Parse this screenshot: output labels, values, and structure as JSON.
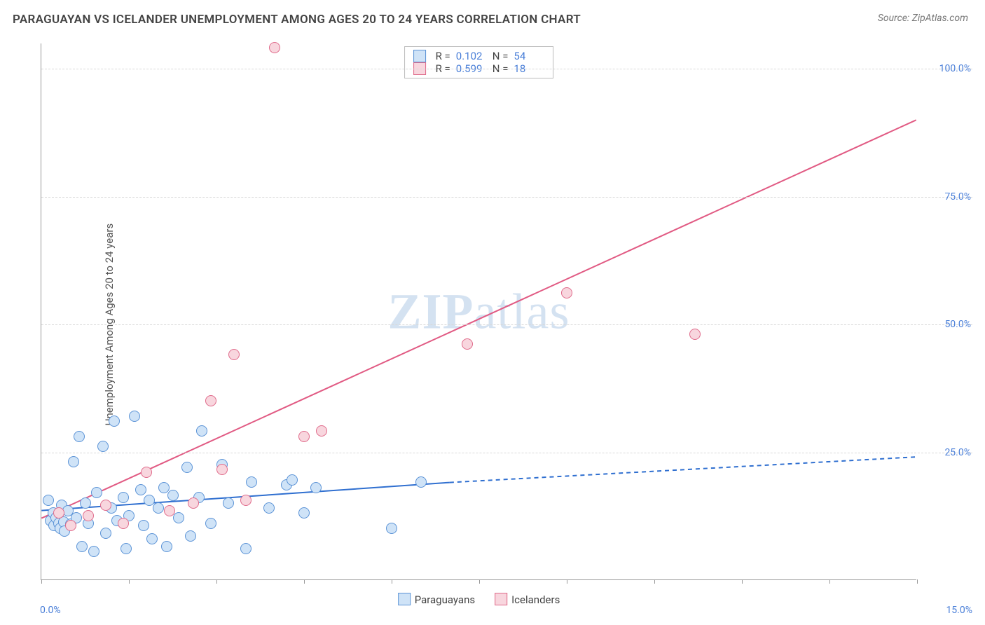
{
  "header": {
    "title": "PARAGUAYAN VS ICELANDER UNEMPLOYMENT AMONG AGES 20 TO 24 YEARS CORRELATION CHART",
    "source": "Source: ZipAtlas.com"
  },
  "axes": {
    "ylabel": "Unemployment Among Ages 20 to 24 years",
    "x_min_label": "0.0%",
    "x_max_label": "15.0%",
    "xlim": [
      0,
      15
    ],
    "ylim": [
      0,
      105
    ],
    "yticks": [
      {
        "v": 25,
        "label": "25.0%"
      },
      {
        "v": 50,
        "label": "50.0%"
      },
      {
        "v": 75,
        "label": "75.0%"
      },
      {
        "v": 100,
        "label": "100.0%"
      }
    ],
    "xtick_positions": [
      0,
      1.5,
      3,
      4.5,
      6,
      7.5,
      9,
      10.5,
      12,
      13.5,
      15
    ],
    "grid_color": "#d8d8d8",
    "axis_color": "#999999"
  },
  "watermark": {
    "bold": "ZIP",
    "rest": "atlas",
    "color": "#b9cfe8"
  },
  "series": {
    "paraguayans": {
      "label": "Paraguayans",
      "fill": "#cfe3f7",
      "stroke": "#5b93d6",
      "marker_radius": 8,
      "line_color": "#2f6fd0",
      "line_width": 2,
      "trend_solid": [
        [
          0,
          13.5
        ],
        [
          7.0,
          19
        ]
      ],
      "trend_dashed": [
        [
          7.0,
          19
        ],
        [
          15,
          24
        ]
      ],
      "points": [
        [
          0.12,
          15.5
        ],
        [
          0.15,
          11.5
        ],
        [
          0.2,
          13
        ],
        [
          0.22,
          10.5
        ],
        [
          0.25,
          12
        ],
        [
          0.3,
          11
        ],
        [
          0.32,
          10
        ],
        [
          0.35,
          14.5
        ],
        [
          0.38,
          11.2
        ],
        [
          0.4,
          9.5
        ],
        [
          0.45,
          13.5
        ],
        [
          0.5,
          10.8
        ],
        [
          0.55,
          23
        ],
        [
          0.6,
          12
        ],
        [
          0.65,
          28
        ],
        [
          0.7,
          6.5
        ],
        [
          0.75,
          15
        ],
        [
          0.8,
          11
        ],
        [
          0.9,
          5.5
        ],
        [
          0.95,
          17
        ],
        [
          1.05,
          26
        ],
        [
          1.1,
          9
        ],
        [
          1.2,
          14
        ],
        [
          1.25,
          31
        ],
        [
          1.3,
          11.5
        ],
        [
          1.4,
          16
        ],
        [
          1.45,
          6
        ],
        [
          1.5,
          12.5
        ],
        [
          1.6,
          32
        ],
        [
          1.7,
          17.5
        ],
        [
          1.75,
          10.5
        ],
        [
          1.85,
          15.5
        ],
        [
          1.9,
          8
        ],
        [
          2.0,
          14
        ],
        [
          2.1,
          18
        ],
        [
          2.15,
          6.5
        ],
        [
          2.25,
          16.5
        ],
        [
          2.35,
          12
        ],
        [
          2.5,
          22
        ],
        [
          2.55,
          8.5
        ],
        [
          2.7,
          16
        ],
        [
          2.75,
          29
        ],
        [
          2.9,
          11
        ],
        [
          3.1,
          22.5
        ],
        [
          3.2,
          15
        ],
        [
          3.5,
          6
        ],
        [
          3.6,
          19
        ],
        [
          3.9,
          14
        ],
        [
          4.2,
          18.5
        ],
        [
          4.3,
          19.5
        ],
        [
          4.5,
          13
        ],
        [
          4.7,
          18
        ],
        [
          6.0,
          10
        ],
        [
          6.5,
          19
        ]
      ]
    },
    "icelanders": {
      "label": "Icelanders",
      "fill": "#f8d6de",
      "stroke": "#e06b8b",
      "marker_radius": 8,
      "line_color": "#e15a83",
      "line_width": 2,
      "trend_solid": [
        [
          0,
          12
        ],
        [
          15,
          90
        ]
      ],
      "points": [
        [
          0.3,
          13
        ],
        [
          0.5,
          10.5
        ],
        [
          0.8,
          12.5
        ],
        [
          1.1,
          14.5
        ],
        [
          1.4,
          11
        ],
        [
          1.8,
          21
        ],
        [
          2.2,
          13.5
        ],
        [
          2.6,
          15
        ],
        [
          2.9,
          35
        ],
        [
          3.1,
          21.5
        ],
        [
          3.3,
          44
        ],
        [
          3.5,
          15.5
        ],
        [
          4.5,
          28
        ],
        [
          4.8,
          29
        ],
        [
          7.3,
          46
        ],
        [
          9.0,
          56
        ],
        [
          11.2,
          48
        ],
        [
          4.0,
          104
        ]
      ]
    }
  },
  "stats": {
    "rows": [
      {
        "swatch_fill": "#cfe3f7",
        "swatch_stroke": "#5b93d6",
        "r": "0.102",
        "n": "54"
      },
      {
        "swatch_fill": "#f8d6de",
        "swatch_stroke": "#e06b8b",
        "r": "0.599",
        "n": "18"
      }
    ],
    "r_label": "R  =",
    "n_label": "N  ="
  },
  "legend_bottom": {
    "items": [
      {
        "fill": "#cfe3f7",
        "stroke": "#5b93d6",
        "label": "Paraguayans"
      },
      {
        "fill": "#f8d6de",
        "stroke": "#e06b8b",
        "label": "Icelanders"
      }
    ]
  }
}
